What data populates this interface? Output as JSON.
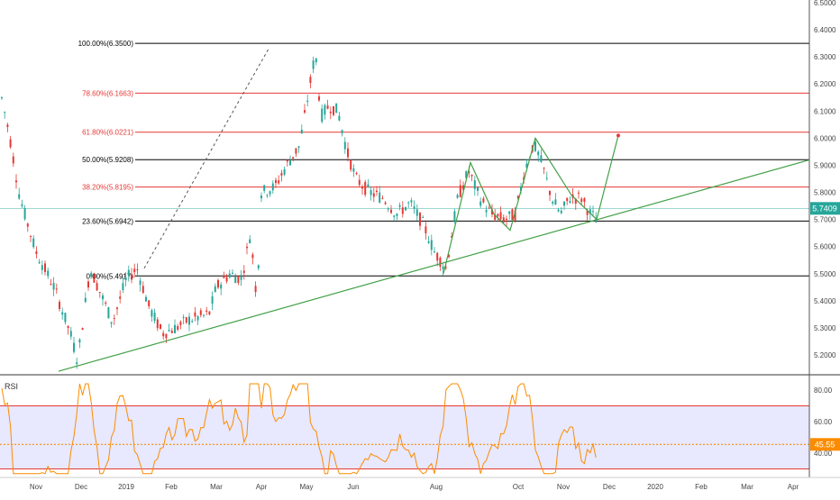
{
  "chart_data": [
    {
      "type": "candlestick",
      "y_ticks": [
        "6.5000",
        "6.4000",
        "6.3000",
        "6.2000",
        "6.1000",
        "6.0000",
        "5.9000",
        "5.8000",
        "5.7000",
        "5.6000",
        "5.5000",
        "5.4000",
        "5.3000",
        "5.2000"
      ],
      "ylim": [
        5.14,
        6.5
      ],
      "x_ticks": [
        "Nov",
        "Dec",
        "2019",
        "Feb",
        "Mar",
        "Apr",
        "May",
        "Jun",
        "Aug",
        "Oct",
        "Nov",
        "Dec",
        "2020",
        "Feb",
        "Mar",
        "Apr"
      ],
      "last_price": {
        "label": "5.7409",
        "value": 5.7409,
        "color": "#26a69a"
      },
      "fib_levels": [
        {
          "label": "100.00%(6.3500)",
          "value": 6.35,
          "color": "#000000"
        },
        {
          "label": "78.60%(6.1663)",
          "value": 6.1663,
          "color": "#e53935"
        },
        {
          "label": "61.80%(6.0221)",
          "value": 6.0221,
          "color": "#e53935"
        },
        {
          "label": "50.00%(5.9208)",
          "value": 5.9208,
          "color": "#000000"
        },
        {
          "label": "38.20%(5.8195)",
          "value": 5.8195,
          "color": "#e53935"
        },
        {
          "label": "23.60%(5.6942)",
          "value": 5.6942,
          "color": "#000000"
        },
        {
          "label": "0.00%(5.4917)",
          "value": 5.4917,
          "color": "#000000"
        }
      ],
      "colors": {
        "up": "#26a69a",
        "down": "#e53935",
        "trend": "#43a047"
      }
    },
    {
      "type": "line",
      "title": "RSI",
      "y_ticks": [
        "80.00",
        "60.00",
        "40.00"
      ],
      "ylim": [
        25,
        90
      ],
      "bands": {
        "upper": 70,
        "lower": 30
      },
      "midline": 45.55,
      "last_value": {
        "label": "45.55",
        "value": 45.55,
        "color": "#fb8c00"
      },
      "colors": {
        "line": "#fb8c00",
        "band_fill": "#e8e8ff",
        "band_line": "#e53935"
      }
    }
  ]
}
